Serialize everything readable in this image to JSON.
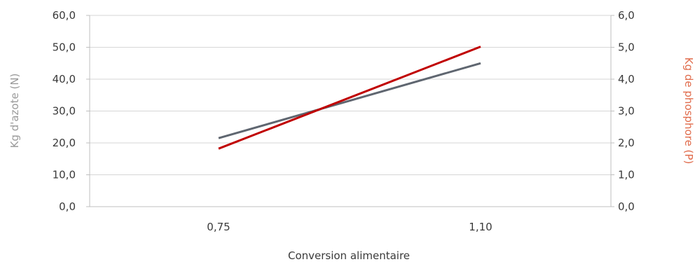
{
  "chart_data": {
    "type": "line",
    "categories": [
      "0,75",
      "1,10"
    ],
    "xlabel": "Conversion alimentaire",
    "ylabel_left": "Kg d'azote (N)",
    "ylabel_right": "Kg de phosphore (P)",
    "y_left": {
      "ylim": [
        0,
        60
      ],
      "ticks": [
        "0,0",
        "10,0",
        "20,0",
        "30,0",
        "40,0",
        "50,0",
        "60,0"
      ]
    },
    "y_right": {
      "ylim": [
        0,
        6
      ],
      "ticks": [
        "0,0",
        "1,0",
        "2,0",
        "3,0",
        "4,0",
        "5,0",
        "6,0"
      ]
    },
    "series": [
      {
        "axis": "left",
        "color": "#5f6670",
        "values": [
          21.5,
          45.0
        ]
      },
      {
        "axis": "right",
        "color": "#c00000",
        "values": [
          1.82,
          5.02
        ]
      }
    ],
    "grid": true,
    "legend": "none",
    "colors": {
      "right_axis_label": "#e06b4b",
      "gridline": "#d6d6d6",
      "axis_line": "#bfbfbf"
    }
  }
}
